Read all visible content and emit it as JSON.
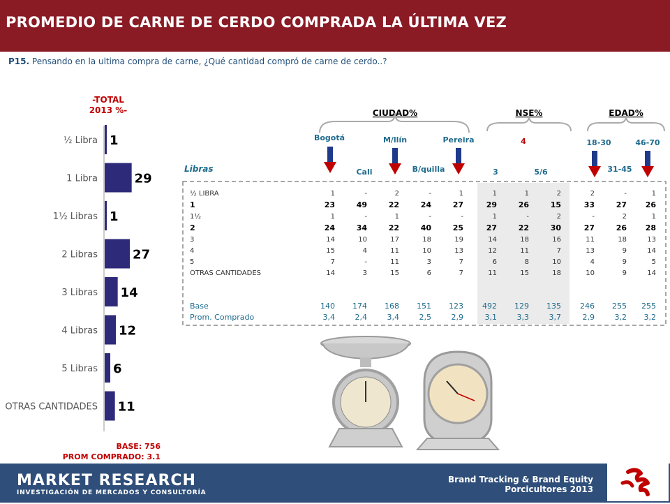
{
  "header": {
    "title": "PROMEDIO DE CARNE DE CERDO COMPRADA LA ÚLTIMA VEZ"
  },
  "question": {
    "code": "P15.",
    "text": "Pensando en la ultima compra de carne, ¿Qué cantidad compró de carne de cerdo..?"
  },
  "total_label": {
    "line1": "-TOTAL",
    "line2": "2013 %-"
  },
  "base_info": {
    "base": "BASE: 756",
    "prom": "PROM COMPRADO: 3.1"
  },
  "chart_data": {
    "type": "bar",
    "orientation": "horizontal",
    "categories": [
      "½ Libra",
      "1 Libra",
      "1½ Libras",
      "2 Libras",
      "3 Libras",
      "4 Libras",
      "5 Libras",
      "OTRAS CANTIDADES"
    ],
    "values": [
      1,
      29,
      1,
      27,
      14,
      12,
      6,
      11
    ],
    "bar_color": "#2e2a7a"
  },
  "table": {
    "row_header": "Libras",
    "group_headers": [
      "CIUDAD%",
      "NSE%",
      "EDAD%"
    ],
    "col_headers_top": [
      "Bogotá",
      "M/llín",
      "Pereira",
      "4",
      "18-30",
      "46-70"
    ],
    "col_headers_bottom": [
      "Cali",
      "B/quilla",
      "3",
      "5/6",
      "31-45"
    ],
    "rows": [
      {
        "label": "½ LIBRA",
        "values": [
          "1",
          "-",
          "2",
          "-",
          "1",
          "1",
          "1",
          "2",
          "2",
          "-",
          "1"
        ]
      },
      {
        "label": "1",
        "values": [
          "23",
          "49",
          "22",
          "24",
          "27",
          "29",
          "26",
          "15",
          "33",
          "27",
          "26"
        ]
      },
      {
        "label": "1½",
        "values": [
          "1",
          "-",
          "1",
          "-",
          "-",
          "1",
          "-",
          "2",
          "-",
          "2",
          "1"
        ]
      },
      {
        "label": "2",
        "values": [
          "24",
          "34",
          "22",
          "40",
          "25",
          "27",
          "22",
          "30",
          "27",
          "26",
          "28"
        ]
      },
      {
        "label": "3",
        "values": [
          "14",
          "10",
          "17",
          "18",
          "19",
          "14",
          "18",
          "16",
          "11",
          "18",
          "13"
        ]
      },
      {
        "label": "4",
        "values": [
          "15",
          "4",
          "11",
          "10",
          "13",
          "12",
          "11",
          "7",
          "13",
          "9",
          "14"
        ]
      },
      {
        "label": "5",
        "values": [
          "7",
          "-",
          "11",
          "3",
          "7",
          "6",
          "8",
          "10",
          "4",
          "9",
          "5"
        ]
      },
      {
        "label": "OTRAS CANTIDADES",
        "values": [
          "14",
          "3",
          "15",
          "6",
          "7",
          "11",
          "15",
          "18",
          "10",
          "9",
          "14"
        ]
      }
    ],
    "base_row": {
      "label": "Base",
      "values": [
        "140",
        "174",
        "168",
        "151",
        "123",
        "492",
        "129",
        "135",
        "246",
        "255",
        "255"
      ]
    },
    "prom_row": {
      "label": "Prom. Comprado",
      "values": [
        "3,4",
        "2,4",
        "3,4",
        "2,5",
        "2,9",
        "3,1",
        "3,3",
        "3,7",
        "2,9",
        "3,2",
        "3,2"
      ]
    }
  },
  "footer": {
    "logo": "MARKET RESEARCH",
    "logo_sub": "INVESTIGACIÓN DE MERCADOS Y CONSULTORÍA",
    "line1": "Brand Tracking & Brand Equity",
    "line2": "Porcicultores 2013"
  }
}
